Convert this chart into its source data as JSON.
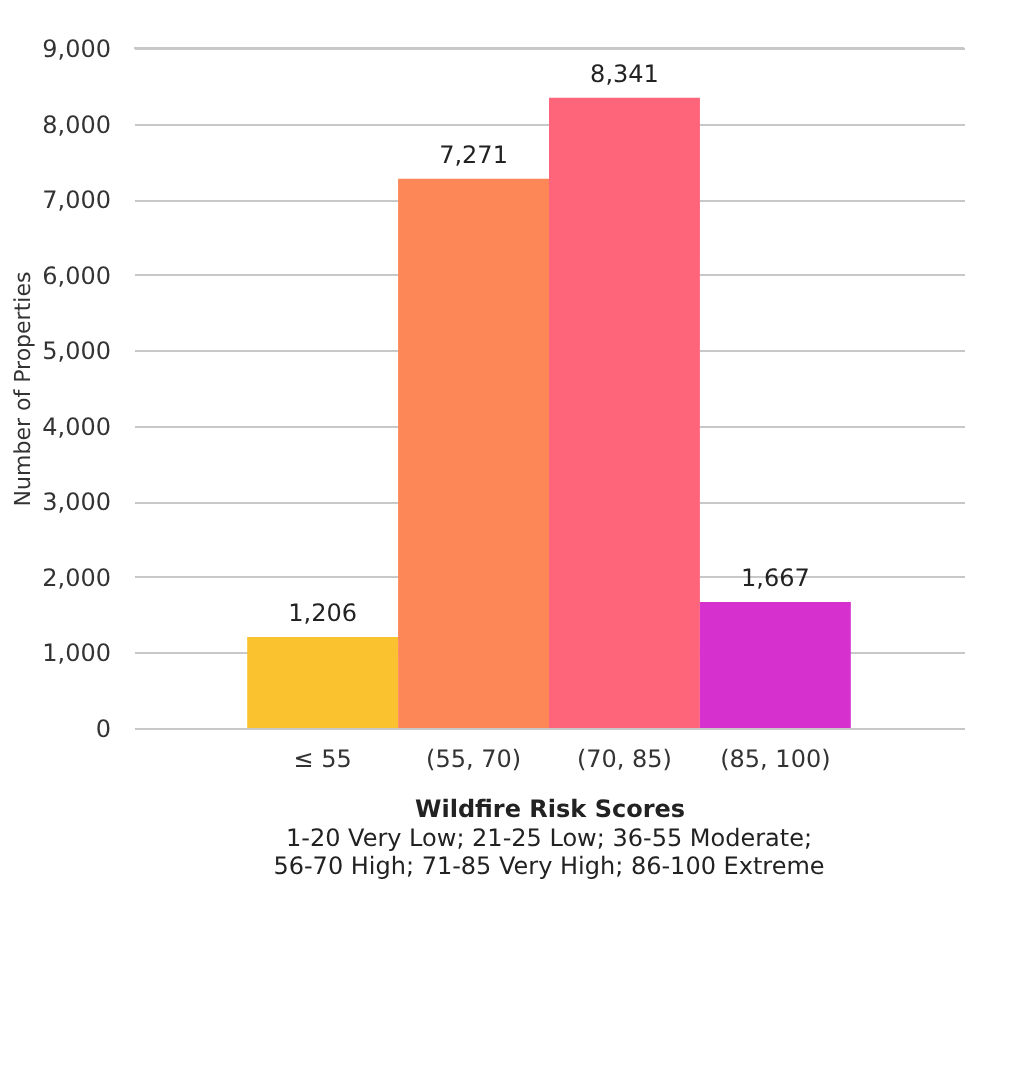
{
  "chart_data": {
    "type": "bar",
    "categories": [
      "≤ 55",
      "(55, 70)",
      "(70, 85)",
      "(85, 100)"
    ],
    "values": [
      1206,
      7271,
      8341,
      1667
    ],
    "colors": [
      "#f9c22e",
      "#fd8757",
      "#fe657b",
      "#d630cf"
    ],
    "xlabel": "Wildfire Risk Scores",
    "ylabel": "Number of Properties",
    "annotations": [
      "1-20 Very Low; 21-25 Low; 36-55 Moderate;",
      "56-70 High; 71-85 Very High; 86-100 Extreme"
    ],
    "ylim": [
      0,
      9000
    ],
    "yticks": [
      0,
      {
        "value": 1000,
        "label": "1,000"
      },
      {
        "value": 2000,
        "label": "2,000"
      },
      {
        "value": 3000,
        "label": "3,000"
      },
      {
        "value": 4000,
        "label": "4,000"
      },
      {
        "value": 5000,
        "label": "5,000"
      },
      {
        "value": 6000,
        "label": "6,000"
      },
      {
        "value": 7000,
        "label": "7,000"
      },
      {
        "value": 8000,
        "label": "8,000"
      },
      {
        "value": 9000,
        "label": "9,000"
      }
    ],
    "grid": "y",
    "value_labels": [
      "1,206",
      "7,271",
      "8,341",
      "1,667"
    ]
  }
}
